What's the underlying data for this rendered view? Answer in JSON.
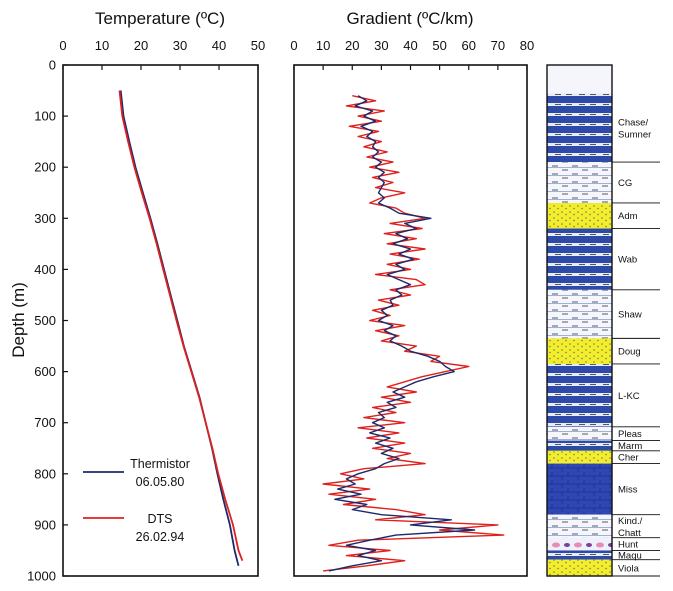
{
  "chart_data": [
    {
      "type": "line",
      "title": "Temperature (ºC)",
      "ylabel": "Depth (m)",
      "xlim": [
        0,
        50
      ],
      "ylim": [
        1000,
        0
      ],
      "xticks": [
        0,
        10,
        20,
        30,
        40,
        50
      ],
      "yticks": [
        0,
        100,
        200,
        300,
        400,
        500,
        600,
        700,
        800,
        900,
        1000
      ],
      "series": [
        {
          "name": "Thermistor",
          "date": "06.05.80",
          "color": "#1c2a6b",
          "points": [
            [
              14.8,
              50
            ],
            [
              15.5,
              100
            ],
            [
              17.0,
              150
            ],
            [
              18.6,
              200
            ],
            [
              20.5,
              250
            ],
            [
              22.4,
              300
            ],
            [
              24.2,
              350
            ],
            [
              25.9,
              400
            ],
            [
              27.6,
              450
            ],
            [
              29.3,
              500
            ],
            [
              31.0,
              550
            ],
            [
              33.0,
              600
            ],
            [
              35.0,
              650
            ],
            [
              36.6,
              700
            ],
            [
              38.2,
              750
            ],
            [
              39.6,
              800
            ],
            [
              41.1,
              850
            ],
            [
              42.8,
              900
            ],
            [
              44.0,
              950
            ],
            [
              45.0,
              980
            ]
          ]
        },
        {
          "name": "DTS",
          "date": "26.02.94",
          "color": "#e0201c",
          "points": [
            [
              14.5,
              50
            ],
            [
              15.2,
              100
            ],
            [
              16.7,
              150
            ],
            [
              18.3,
              200
            ],
            [
              20.2,
              250
            ],
            [
              22.2,
              300
            ],
            [
              24.0,
              350
            ],
            [
              25.7,
              400
            ],
            [
              27.4,
              450
            ],
            [
              29.1,
              500
            ],
            [
              30.9,
              550
            ],
            [
              32.9,
              600
            ],
            [
              34.9,
              650
            ],
            [
              36.6,
              700
            ],
            [
              38.3,
              750
            ],
            [
              39.8,
              800
            ],
            [
              41.6,
              850
            ],
            [
              43.6,
              900
            ],
            [
              45.0,
              950
            ],
            [
              46.0,
              970
            ]
          ]
        }
      ]
    },
    {
      "type": "line",
      "title": "Gradient (ºC/km)",
      "xlim": [
        0,
        80
      ],
      "ylim": [
        1000,
        0
      ],
      "xticks": [
        0,
        10,
        20,
        30,
        40,
        50,
        60,
        70,
        80
      ],
      "series": [
        {
          "name": "Thermistor",
          "color": "#1c2a6b",
          "points": [
            [
              22,
              60
            ],
            [
              25,
              70
            ],
            [
              21,
              80
            ],
            [
              27,
              90
            ],
            [
              24,
              100
            ],
            [
              28,
              110
            ],
            [
              23,
              120
            ],
            [
              27,
              130
            ],
            [
              25,
              140
            ],
            [
              28,
              150
            ],
            [
              27,
              160
            ],
            [
              29,
              170
            ],
            [
              27,
              180
            ],
            [
              30,
              190
            ],
            [
              28,
              200
            ],
            [
              31,
              210
            ],
            [
              29,
              220
            ],
            [
              31,
              230
            ],
            [
              30,
              240
            ],
            [
              29,
              250
            ],
            [
              31,
              260
            ],
            [
              29,
              270
            ],
            [
              33,
              280
            ],
            [
              36,
              290
            ],
            [
              47,
              300
            ],
            [
              38,
              310
            ],
            [
              42,
              320
            ],
            [
              35,
              330
            ],
            [
              39,
              340
            ],
            [
              34,
              350
            ],
            [
              40,
              360
            ],
            [
              36,
              370
            ],
            [
              41,
              380
            ],
            [
              35,
              390
            ],
            [
              38,
              400
            ],
            [
              32,
              410
            ],
            [
              36,
              420
            ],
            [
              40,
              430
            ],
            [
              35,
              440
            ],
            [
              37,
              450
            ],
            [
              33,
              460
            ],
            [
              34,
              470
            ],
            [
              30,
              480
            ],
            [
              32,
              490
            ],
            [
              29,
              500
            ],
            [
              34,
              510
            ],
            [
              31,
              520
            ],
            [
              35,
              530
            ],
            [
              33,
              540
            ],
            [
              37,
              550
            ],
            [
              40,
              560
            ],
            [
              46,
              570
            ],
            [
              50,
              580
            ],
            [
              52,
              590
            ],
            [
              55,
              600
            ],
            [
              48,
              610
            ],
            [
              42,
              620
            ],
            [
              38,
              630
            ],
            [
              34,
              640
            ],
            [
              38,
              650
            ],
            [
              32,
              660
            ],
            [
              35,
              670
            ],
            [
              29,
              680
            ],
            [
              31,
              690
            ],
            [
              27,
              700
            ],
            [
              31,
              710
            ],
            [
              26,
              720
            ],
            [
              33,
              730
            ],
            [
              28,
              740
            ],
            [
              34,
              750
            ],
            [
              30,
              760
            ],
            [
              36,
              770
            ],
            [
              31,
              780
            ],
            [
              28,
              790
            ],
            [
              22,
              800
            ],
            [
              18,
              810
            ],
            [
              21,
              820
            ],
            [
              15,
              830
            ],
            [
              23,
              840
            ],
            [
              14,
              850
            ],
            [
              25,
              860
            ],
            [
              20,
              870
            ],
            [
              30,
              880
            ],
            [
              54,
              890
            ],
            [
              40,
              900
            ],
            [
              62,
              910
            ],
            [
              35,
              920
            ],
            [
              26,
              930
            ],
            [
              18,
              940
            ],
            [
              28,
              950
            ],
            [
              22,
              960
            ],
            [
              30,
              970
            ],
            [
              20,
              980
            ],
            [
              12,
              990
            ]
          ]
        },
        {
          "name": "DTS",
          "color": "#e0201c",
          "points": [
            [
              20,
              60
            ],
            [
              28,
              70
            ],
            [
              18,
              80
            ],
            [
              31,
              90
            ],
            [
              22,
              100
            ],
            [
              30,
              110
            ],
            [
              19,
              120
            ],
            [
              29,
              130
            ],
            [
              22,
              140
            ],
            [
              30,
              150
            ],
            [
              24,
              160
            ],
            [
              32,
              170
            ],
            [
              25,
              180
            ],
            [
              34,
              190
            ],
            [
              26,
              200
            ],
            [
              36,
              210
            ],
            [
              27,
              220
            ],
            [
              34,
              230
            ],
            [
              28,
              240
            ],
            [
              38,
              250
            ],
            [
              30,
              260
            ],
            [
              26,
              270
            ],
            [
              35,
              280
            ],
            [
              38,
              290
            ],
            [
              45,
              300
            ],
            [
              33,
              310
            ],
            [
              44,
              320
            ],
            [
              31,
              330
            ],
            [
              42,
              340
            ],
            [
              32,
              350
            ],
            [
              45,
              360
            ],
            [
              33,
              370
            ],
            [
              43,
              380
            ],
            [
              32,
              390
            ],
            [
              40,
              400
            ],
            [
              28,
              410
            ],
            [
              42,
              420
            ],
            [
              45,
              430
            ],
            [
              33,
              440
            ],
            [
              40,
              450
            ],
            [
              29,
              460
            ],
            [
              36,
              470
            ],
            [
              27,
              480
            ],
            [
              33,
              490
            ],
            [
              26,
              500
            ],
            [
              38,
              510
            ],
            [
              28,
              520
            ],
            [
              36,
              530
            ],
            [
              30,
              540
            ],
            [
              42,
              550
            ],
            [
              38,
              560
            ],
            [
              50,
              570
            ],
            [
              47,
              580
            ],
            [
              60,
              590
            ],
            [
              52,
              600
            ],
            [
              44,
              610
            ],
            [
              38,
              620
            ],
            [
              32,
              630
            ],
            [
              42,
              640
            ],
            [
              30,
              650
            ],
            [
              40,
              660
            ],
            [
              27,
              670
            ],
            [
              35,
              680
            ],
            [
              24,
              690
            ],
            [
              38,
              700
            ],
            [
              22,
              710
            ],
            [
              36,
              720
            ],
            [
              25,
              730
            ],
            [
              38,
              740
            ],
            [
              27,
              750
            ],
            [
              40,
              760
            ],
            [
              32,
              770
            ],
            [
              45,
              780
            ],
            [
              24,
              790
            ],
            [
              16,
              800
            ],
            [
              24,
              810
            ],
            [
              10,
              820
            ],
            [
              26,
              830
            ],
            [
              12,
              840
            ],
            [
              28,
              850
            ],
            [
              17,
              860
            ],
            [
              35,
              870
            ],
            [
              45,
              880
            ],
            [
              28,
              890
            ],
            [
              70,
              900
            ],
            [
              50,
              910
            ],
            [
              72,
              920
            ],
            [
              22,
              930
            ],
            [
              12,
              940
            ],
            [
              33,
              950
            ],
            [
              18,
              960
            ],
            [
              38,
              970
            ],
            [
              25,
              980
            ],
            [
              10,
              990
            ]
          ]
        }
      ]
    }
  ],
  "formations": [
    {
      "label": "Chase/ Sumner",
      "top": 55,
      "bottom": 190,
      "pattern": "shale-blue"
    },
    {
      "label": "CG",
      "top": 190,
      "bottom": 270,
      "pattern": "shale-white"
    },
    {
      "label": "Adm",
      "top": 270,
      "bottom": 320,
      "pattern": "sand-yellow"
    },
    {
      "label": "Wab",
      "top": 320,
      "bottom": 440,
      "pattern": "shale-blue"
    },
    {
      "label": "Shaw",
      "top": 440,
      "bottom": 535,
      "pattern": "shale-white"
    },
    {
      "label": "Doug",
      "top": 535,
      "bottom": 585,
      "pattern": "sand-yellow"
    },
    {
      "label": "L-KC",
      "top": 585,
      "bottom": 708,
      "pattern": "shale-blue"
    },
    {
      "label": "Pleas",
      "top": 708,
      "bottom": 735,
      "pattern": "shale-white"
    },
    {
      "label": "Marm",
      "top": 735,
      "bottom": 755,
      "pattern": "shale-blue"
    },
    {
      "label": "Cher",
      "top": 755,
      "bottom": 780,
      "pattern": "sand-yellow"
    },
    {
      "label": "Miss",
      "top": 780,
      "bottom": 880,
      "pattern": "limestone-blue"
    },
    {
      "label": "Kind./ Chatt",
      "top": 880,
      "bottom": 925,
      "pattern": "shale-white"
    },
    {
      "label": "Hunt",
      "top": 925,
      "bottom": 950,
      "pattern": "pink"
    },
    {
      "label": "Maqu",
      "top": 950,
      "bottom": 968,
      "pattern": "shale-blue"
    },
    {
      "label": "Viola",
      "top": 968,
      "bottom": 1000,
      "pattern": "sand-yellow"
    }
  ],
  "colors": {
    "thermistor": "#1c2a6b",
    "dts": "#e0201c",
    "shale_blue": "#2e4aa8",
    "sand_yellow": "#f2ee2a",
    "pink": "#e88bb8"
  }
}
